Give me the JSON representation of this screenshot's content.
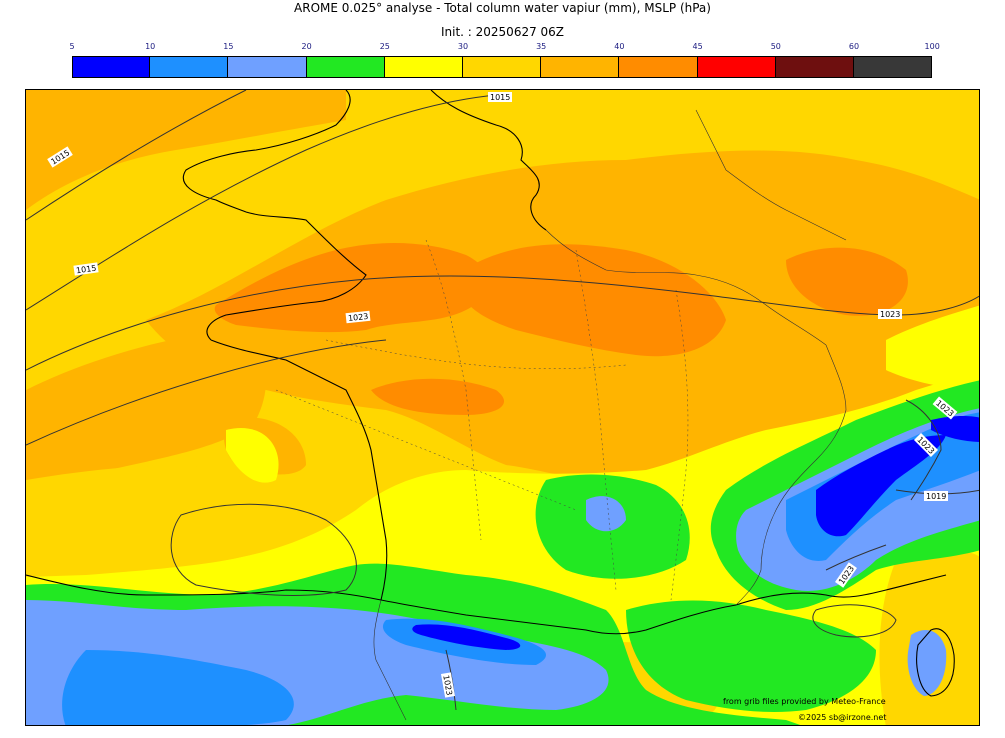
{
  "header": {
    "title": "AROME 0.025° analyse - Total column water vapiur (mm), MSLP (hPa)",
    "init": "Init. : 20250627 06Z"
  },
  "colorbar": {
    "ticks": [
      "5",
      "10",
      "15",
      "20",
      "25",
      "30",
      "35",
      "40",
      "45",
      "50",
      "60",
      "100"
    ],
    "colors": [
      "#0000ff",
      "#1e90ff",
      "#6fa0ff",
      "#22e822",
      "#ffff00",
      "#ffd700",
      "#ffb400",
      "#ff8c00",
      "#ff0000",
      "#6e0f0f",
      "#383838"
    ]
  },
  "isobar_labels": [
    "1015",
    "1015",
    "1015",
    "1023",
    "1023",
    "1023",
    "1023",
    "1019",
    "1023",
    "1023"
  ],
  "footer": {
    "credit1": "from grib files provided by  Meteo-France",
    "credit2": "©2025 sb@irzone.net"
  }
}
